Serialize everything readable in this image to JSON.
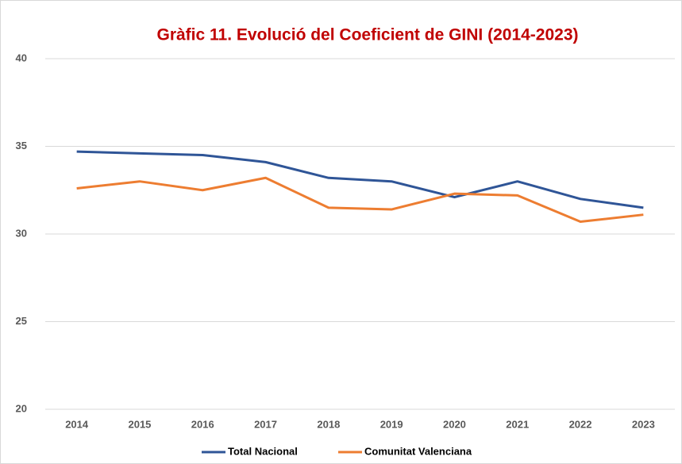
{
  "chart_data": {
    "type": "line",
    "title": "Gràfic 11. Evolució del Coeficient de GINI (2014-2023)",
    "categories": [
      "2014",
      "2015",
      "2016",
      "2017",
      "2018",
      "2019",
      "2020",
      "2021",
      "2022",
      "2023"
    ],
    "series": [
      {
        "name": "Total Nacional",
        "color": "#2f5597",
        "values": [
          34.7,
          34.6,
          34.5,
          34.1,
          33.2,
          33.0,
          32.1,
          33.0,
          32.0,
          31.5
        ]
      },
      {
        "name": "Comunitat Valenciana",
        "color": "#ed7d31",
        "values": [
          32.6,
          33.0,
          32.5,
          33.2,
          31.5,
          31.4,
          32.3,
          32.2,
          30.7,
          31.1
        ]
      }
    ],
    "ylim": [
      20,
      40
    ],
    "yticks": [
      20,
      25,
      30,
      35,
      40
    ],
    "grid": true,
    "legend": "bottom"
  }
}
